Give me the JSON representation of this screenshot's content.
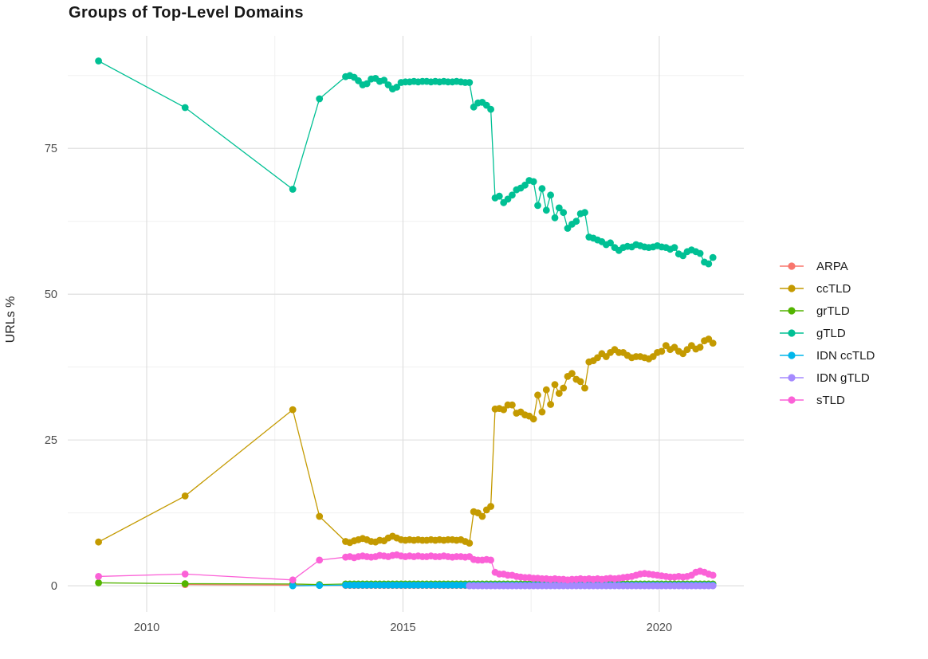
{
  "chart_data": {
    "type": "line",
    "title": "Groups of Top-Level Domains",
    "xlabel": "",
    "ylabel": "URLs %",
    "x_range": [
      2008.46,
      2021.65
    ],
    "y_range": [
      -4.5,
      94.3
    ],
    "x_ticks": {
      "major": [
        2010,
        2015,
        2020
      ],
      "minor": [
        2012.5,
        2017.5
      ]
    },
    "x_tick_labels": [
      "2010",
      "2015",
      "2020"
    ],
    "y_ticks": {
      "major": [
        0,
        25,
        50,
        75
      ],
      "minor": [
        12.5,
        37.5,
        62.5,
        87.5
      ]
    },
    "y_tick_labels": [
      "0",
      "25",
      "50",
      "75"
    ],
    "grid": true,
    "legend_position": "right",
    "point_radius": 4.4,
    "colors": {
      "major_grid": "#dcdcdc",
      "minor_grid": "#f0f0f0",
      "tick_label": "#4d4d4d",
      "text": "#1b1b1b"
    },
    "series": [
      {
        "name": "ARPA",
        "color": "#F8766D",
        "pre": [
          [
            2010.75,
            0.2
          ],
          [
            2012.85,
            0.1
          ],
          [
            2013.37,
            0.08
          ]
        ],
        "monthly": {
          "x0": 2013.88,
          "dx": 0.08333,
          "n": 87,
          "y_const": 0.05
        }
      },
      {
        "name": "ccTLD",
        "color": "#C49A00",
        "pre": [
          [
            2009.06,
            7.5
          ],
          [
            2010.75,
            15.4
          ],
          [
            2012.85,
            30.2
          ],
          [
            2013.37,
            11.9
          ]
        ],
        "monthly": {
          "x0": 2013.88,
          "dx": 0.08333,
          "n": 87,
          "y": [
            7.6,
            7.4,
            7.7,
            7.9,
            8.1,
            7.9,
            7.6,
            7.5,
            7.8,
            7.7,
            8.2,
            8.5,
            8.2,
            7.9,
            7.8,
            7.9,
            7.8,
            7.9,
            7.8,
            7.8,
            7.9,
            7.8,
            7.9,
            7.8,
            7.9,
            7.9,
            7.8,
            7.9,
            7.6,
            7.3,
            12.7,
            12.5,
            11.9,
            13.0,
            13.6,
            30.3,
            30.4,
            30.2,
            31.0,
            31.0,
            29.6,
            29.8,
            29.3,
            29.1,
            28.6,
            32.7,
            29.8,
            33.6,
            31.1,
            34.5,
            33.0,
            33.9,
            35.9,
            36.4,
            35.4,
            35.0,
            33.9,
            38.4,
            38.6,
            39.1,
            39.8,
            39.3,
            40.0,
            40.5,
            40.0,
            40.0,
            39.5,
            39.1,
            39.3,
            39.3,
            39.1,
            38.9,
            39.3,
            40.0,
            40.2,
            41.2,
            40.5,
            40.9,
            40.2,
            39.8,
            40.5,
            41.2,
            40.6,
            40.9,
            42.0,
            42.3,
            41.6
          ]
        }
      },
      {
        "name": "grTLD",
        "color": "#53B400",
        "pre": [
          [
            2009.06,
            0.5
          ],
          [
            2010.75,
            0.35
          ],
          [
            2012.85,
            0.3
          ],
          [
            2013.37,
            0.2
          ]
        ],
        "monthly": {
          "x0": 2013.88,
          "dx": 0.08333,
          "n": 87,
          "y_const": 0.3
        }
      },
      {
        "name": "gTLD",
        "color": "#00C094",
        "pre": [
          [
            2009.06,
            90.0
          ],
          [
            2010.75,
            82.0
          ],
          [
            2012.85,
            68.0
          ],
          [
            2013.37,
            83.5
          ]
        ],
        "monthly": {
          "x0": 2013.88,
          "dx": 0.08333,
          "n": 87,
          "y": [
            87.3,
            87.5,
            87.2,
            86.6,
            85.9,
            86.1,
            86.9,
            87.0,
            86.5,
            86.7,
            85.9,
            85.2,
            85.5,
            86.3,
            86.4,
            86.4,
            86.5,
            86.4,
            86.5,
            86.5,
            86.4,
            86.5,
            86.4,
            86.5,
            86.4,
            86.4,
            86.5,
            86.4,
            86.3,
            86.3,
            82.1,
            82.8,
            82.9,
            82.4,
            81.7,
            66.5,
            66.8,
            65.7,
            66.3,
            67.0,
            67.9,
            68.2,
            68.7,
            69.5,
            69.3,
            65.2,
            68.1,
            64.4,
            67.0,
            63.1,
            64.8,
            64.0,
            61.3,
            62.0,
            62.5,
            63.8,
            64.0,
            59.8,
            59.6,
            59.3,
            59.0,
            58.5,
            58.8,
            58.0,
            57.5,
            58.0,
            58.2,
            58.1,
            58.5,
            58.3,
            58.1,
            58.0,
            58.1,
            58.3,
            58.1,
            58.0,
            57.7,
            58.0,
            56.9,
            56.6,
            57.3,
            57.6,
            57.3,
            57.0,
            55.5,
            55.2,
            56.3
          ]
        }
      },
      {
        "name": "IDN ccTLD",
        "color": "#00B6EB",
        "pre": [
          [
            2012.85,
            0.0
          ],
          [
            2013.37,
            0.05
          ]
        ],
        "monthly": {
          "x0": 2013.88,
          "dx": 0.08333,
          "n": 87,
          "y_const": 0.1
        }
      },
      {
        "name": "IDN gTLD",
        "color": "#A58AFF",
        "pre": [],
        "monthly": {
          "x0": 2016.297,
          "dx": 0.08333,
          "n": 58,
          "y_const": 0.0
        }
      },
      {
        "name": "sTLD",
        "color": "#FB61D7",
        "pre": [
          [
            2009.06,
            1.6
          ],
          [
            2010.75,
            2.0
          ],
          [
            2012.85,
            1.0
          ],
          [
            2013.37,
            4.4
          ]
        ],
        "monthly": {
          "x0": 2013.88,
          "dx": 0.08333,
          "n": 87,
          "y": [
            4.9,
            5.0,
            4.8,
            5.0,
            5.1,
            5.0,
            4.9,
            5.0,
            5.2,
            5.1,
            5.0,
            5.2,
            5.3,
            5.1,
            5.0,
            5.1,
            5.0,
            5.1,
            5.0,
            5.0,
            5.1,
            5.0,
            5.0,
            5.1,
            5.0,
            4.9,
            5.0,
            5.0,
            4.9,
            5.0,
            4.5,
            4.4,
            4.4,
            4.5,
            4.4,
            2.3,
            2.0,
            2.0,
            1.8,
            1.8,
            1.6,
            1.5,
            1.4,
            1.4,
            1.3,
            1.3,
            1.2,
            1.2,
            1.1,
            1.2,
            1.1,
            1.1,
            1.0,
            1.1,
            1.1,
            1.2,
            1.1,
            1.2,
            1.1,
            1.2,
            1.1,
            1.2,
            1.3,
            1.2,
            1.3,
            1.4,
            1.5,
            1.6,
            1.8,
            2.0,
            2.1,
            2.0,
            1.9,
            1.8,
            1.7,
            1.6,
            1.5,
            1.5,
            1.6,
            1.5,
            1.6,
            1.8,
            2.3,
            2.5,
            2.3,
            2.0,
            1.8
          ]
        }
      }
    ]
  }
}
